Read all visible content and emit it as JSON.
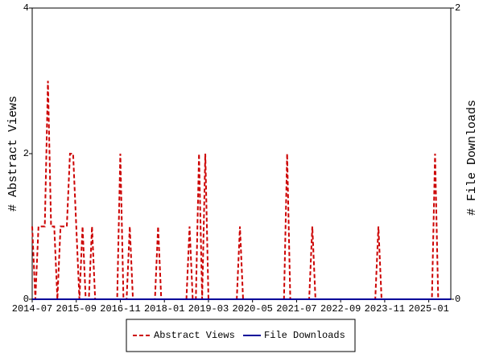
{
  "chart_data": {
    "type": "line",
    "categories": [
      "2014-07",
      null,
      null,
      null,
      null,
      null,
      null,
      null,
      null,
      null,
      null,
      null,
      null,
      null,
      "2015-09",
      null,
      null,
      null,
      null,
      null,
      null,
      null,
      null,
      null,
      null,
      null,
      null,
      null,
      "2016-11",
      null,
      null,
      null,
      null,
      null,
      null,
      null,
      null,
      null,
      null,
      null,
      null,
      null,
      "2018-01",
      null,
      null,
      null,
      null,
      null,
      null,
      null,
      null,
      null,
      null,
      null,
      null,
      null,
      "2019-03",
      null,
      null,
      null,
      null,
      null,
      null,
      null,
      null,
      null,
      null,
      null,
      null,
      null,
      "2020-05",
      null,
      null,
      null,
      null,
      null,
      null,
      null,
      null,
      null,
      null,
      null,
      null,
      null,
      "2021-07",
      null,
      null,
      null,
      null,
      null,
      null,
      null,
      null,
      null,
      null,
      null,
      null,
      null,
      "2022-09",
      null,
      null,
      null,
      null,
      null,
      null,
      null,
      null,
      null,
      null,
      null,
      null,
      null,
      "2023-11",
      null,
      null,
      null,
      null,
      null,
      null,
      null,
      null,
      null,
      null,
      null,
      null,
      null,
      "2025-01",
      null,
      null,
      null,
      null,
      null,
      null,
      null
    ],
    "series": [
      {
        "name": "Abstract Views",
        "color": "#cc0000",
        "dash": true,
        "values": [
          1,
          0,
          1,
          1,
          1,
          3,
          1,
          1,
          0,
          1,
          1,
          1,
          2,
          2,
          1,
          0,
          1,
          0,
          0,
          1,
          0,
          0,
          0,
          0,
          0,
          0,
          0,
          0,
          2,
          0,
          0,
          1,
          0,
          0,
          0,
          0,
          0,
          0,
          0,
          0,
          1,
          0,
          0,
          0,
          0,
          0,
          0,
          0,
          0,
          0,
          1,
          0,
          0,
          2,
          0,
          2,
          0,
          0,
          0,
          0,
          0,
          0,
          0,
          0,
          0,
          0,
          1,
          0,
          0,
          0,
          0,
          0,
          0,
          0,
          0,
          0,
          0,
          0,
          0,
          0,
          0,
          2,
          0,
          0,
          0,
          0,
          0,
          0,
          0,
          1,
          0,
          0,
          0,
          0,
          0,
          0,
          0,
          0,
          0,
          0,
          0,
          0,
          0,
          0,
          0,
          0,
          0,
          0,
          0,
          0,
          1,
          0,
          0,
          0,
          0,
          0,
          0,
          0,
          0,
          0,
          0,
          0,
          0,
          0,
          0,
          0,
          0,
          0,
          2,
          0,
          0,
          0,
          0,
          0
        ]
      },
      {
        "name": "File Downloads",
        "color": "#000099",
        "dash": false,
        "axis": "y2",
        "values": [
          0,
          0,
          0,
          0,
          0,
          0,
          0,
          0,
          0,
          0,
          0,
          0,
          0,
          0,
          0,
          0,
          0,
          0,
          0,
          0,
          0,
          0,
          0,
          0,
          0,
          0,
          0,
          0,
          0,
          0,
          0,
          0,
          0,
          0,
          0,
          0,
          0,
          0,
          0,
          0,
          0,
          0,
          0,
          0,
          0,
          0,
          0,
          0,
          0,
          0,
          0,
          0,
          0,
          0,
          0,
          0,
          0,
          0,
          0,
          0,
          0,
          0,
          0,
          0,
          0,
          0,
          0,
          0,
          0,
          0,
          0,
          0,
          0,
          0,
          0,
          0,
          0,
          0,
          0,
          0,
          0,
          0,
          0,
          0,
          0,
          0,
          0,
          0,
          0,
          0,
          0,
          0,
          0,
          0,
          0,
          0,
          0,
          0,
          0,
          0,
          0,
          0,
          0,
          0,
          0,
          0,
          0,
          0,
          0,
          0,
          0,
          0,
          0,
          0,
          0,
          0,
          0,
          0,
          0,
          0,
          0,
          0,
          0,
          0,
          0,
          0,
          0,
          0,
          0,
          0,
          0,
          0,
          0,
          0
        ]
      }
    ],
    "ylabel": "# Abstract Views",
    "y2label": "# File Downloads",
    "ylim": [
      0,
      4
    ],
    "yticks": [
      0,
      2,
      4
    ],
    "y2lim": [
      0,
      2
    ],
    "y2ticks": [
      0,
      2
    ],
    "legend": "bottom"
  }
}
